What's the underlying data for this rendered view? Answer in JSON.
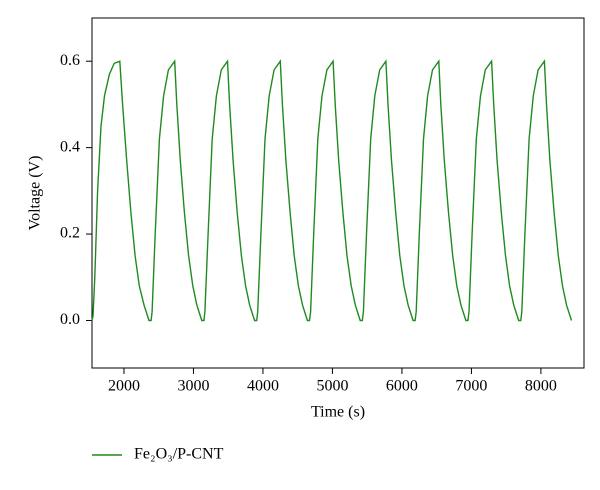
{
  "chart_data": {
    "type": "line",
    "x_label": "Time (s)",
    "y_label": "Voltage (V)",
    "xlim": [
      1540,
      8620
    ],
    "ylim": [
      -0.11,
      0.7
    ],
    "xticks": [
      2000,
      3000,
      4000,
      5000,
      6000,
      7000,
      8000
    ],
    "yticks": [
      {
        "value": 0,
        "label": "0.0"
      },
      0.2,
      0.4,
      0.6
    ],
    "legend": "bottom-left",
    "x": [
      1540,
      1555,
      1580,
      1620,
      1670,
      1720,
      1790,
      1860,
      1940,
      1980,
      2040,
      2100,
      2160,
      2220,
      2290,
      2360,
      2390,
      2405,
      2450,
      2510,
      2570,
      2640,
      2730,
      2760,
      2810,
      2870,
      2930,
      2990,
      3050,
      3120,
      3150,
      3165,
      3210,
      3270,
      3330,
      3400,
      3490,
      3520,
      3570,
      3630,
      3690,
      3750,
      3810,
      3880,
      3910,
      3925,
      3970,
      4030,
      4090,
      4160,
      4250,
      4280,
      4330,
      4390,
      4450,
      4510,
      4570,
      4640,
      4670,
      4685,
      4730,
      4790,
      4850,
      4920,
      5010,
      5040,
      5090,
      5150,
      5210,
      5270,
      5330,
      5400,
      5430,
      5445,
      5490,
      5550,
      5610,
      5680,
      5770,
      5800,
      5850,
      5910,
      5970,
      6030,
      6090,
      6160,
      6190,
      6205,
      6250,
      6310,
      6370,
      6440,
      6530,
      6560,
      6610,
      6670,
      6730,
      6790,
      6850,
      6920,
      6950,
      6965,
      7010,
      7070,
      7130,
      7200,
      7290,
      7320,
      7370,
      7430,
      7490,
      7550,
      7610,
      7680,
      7710,
      7725,
      7770,
      7830,
      7890,
      7960,
      8050,
      8080,
      8130,
      8190,
      8250,
      8310,
      8370,
      8440
    ],
    "series": [
      {
        "name": "Fe₂O₃/P-CNT",
        "color": "#1f8a1f",
        "values": [
          0,
          0.01,
          0.1,
          0.3,
          0.45,
          0.52,
          0.57,
          0.595,
          0.6,
          0.5,
          0.37,
          0.25,
          0.15,
          0.08,
          0.035,
          0,
          0,
          0.02,
          0.2,
          0.42,
          0.52,
          0.58,
          0.6,
          0.5,
          0.37,
          0.25,
          0.15,
          0.08,
          0.035,
          0,
          0,
          0.02,
          0.2,
          0.42,
          0.52,
          0.58,
          0.6,
          0.5,
          0.37,
          0.25,
          0.15,
          0.08,
          0.035,
          0,
          0,
          0.02,
          0.2,
          0.42,
          0.52,
          0.58,
          0.6,
          0.5,
          0.37,
          0.25,
          0.15,
          0.08,
          0.035,
          0,
          0,
          0.02,
          0.2,
          0.42,
          0.52,
          0.58,
          0.6,
          0.5,
          0.37,
          0.25,
          0.15,
          0.08,
          0.035,
          0,
          0,
          0.02,
          0.2,
          0.42,
          0.52,
          0.58,
          0.6,
          0.5,
          0.37,
          0.25,
          0.15,
          0.08,
          0.035,
          0,
          0,
          0.02,
          0.2,
          0.42,
          0.52,
          0.58,
          0.6,
          0.5,
          0.37,
          0.25,
          0.15,
          0.08,
          0.035,
          0,
          0,
          0.02,
          0.2,
          0.42,
          0.52,
          0.58,
          0.6,
          0.5,
          0.37,
          0.25,
          0.15,
          0.08,
          0.035,
          0,
          0,
          0.02,
          0.2,
          0.42,
          0.52,
          0.58,
          0.6,
          0.5,
          0.37,
          0.25,
          0.15,
          0.08,
          0.035,
          0
        ]
      }
    ]
  }
}
